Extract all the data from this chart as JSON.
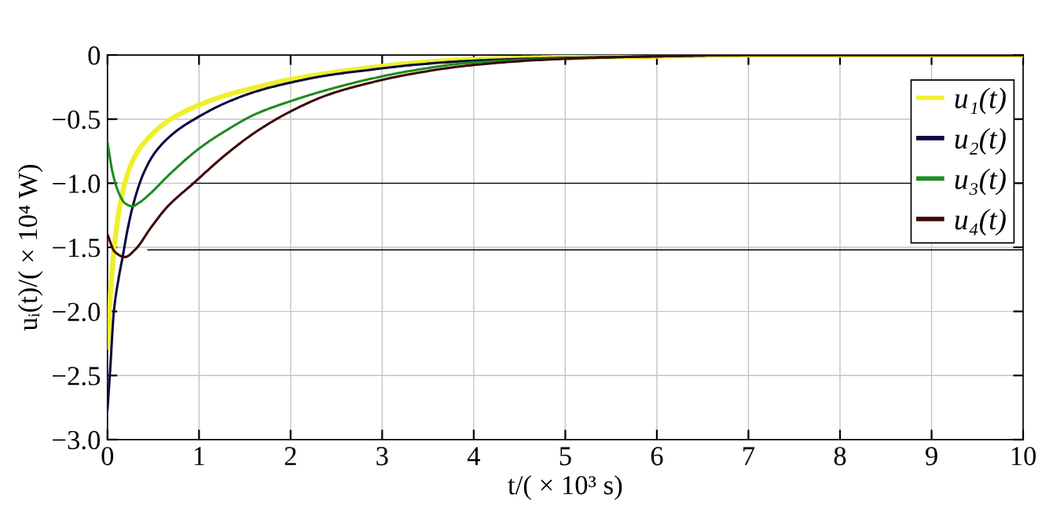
{
  "chart_data": {
    "type": "line",
    "xlabel": "t/( × 10³ s)",
    "ylabel": "uᵢ(t)/( × 10⁴ W)",
    "xlim": [
      0,
      10
    ],
    "ylim": [
      -3.0,
      0
    ],
    "xticks": [
      0,
      1,
      2,
      3,
      4,
      5,
      6,
      7,
      8,
      9,
      10
    ],
    "yticks": [
      {
        "value": -3.0,
        "label": "−3.0"
      },
      {
        "value": -2.5,
        "label": "−2.5"
      },
      {
        "value": -2.0,
        "label": "−2.0"
      },
      {
        "value": -1.5,
        "label": "−1.5"
      },
      {
        "value": -1.0,
        "label": "−1.0"
      },
      {
        "value": -0.5,
        "label": "−0.5"
      },
      0
    ],
    "grid": true,
    "legend": "top right",
    "series": [
      {
        "name": "u₁(t)",
        "color": "#eef02a",
        "x": [
          0,
          0.035,
          0.08,
          0.145,
          0.21,
          0.3,
          0.43,
          0.65,
          1.0,
          1.27,
          1.62,
          2.0,
          2.41,
          2.85,
          3.3,
          3.97,
          4.83,
          6,
          7,
          8,
          9,
          10
        ],
        "values": [
          -2.28,
          -1.84,
          -1.46,
          -1.14,
          -0.95,
          -0.79,
          -0.66,
          -0.52,
          -0.39,
          -0.32,
          -0.253,
          -0.19,
          -0.142,
          -0.1,
          -0.065,
          -0.035,
          -0.02,
          -0.01,
          0,
          0,
          0,
          0
        ]
      },
      {
        "name": "u₂(t)",
        "color": "#0a0a40",
        "x": [
          0,
          0.03,
          0.07,
          0.12,
          0.167,
          0.22,
          0.28,
          0.39,
          0.52,
          0.74,
          1.0,
          1.27,
          1.62,
          2.0,
          2.41,
          2.85,
          3.3,
          3.97,
          4.83,
          6,
          7,
          8,
          9,
          10
        ],
        "values": [
          -2.77,
          -2.45,
          -2.0,
          -1.75,
          -1.57,
          -1.36,
          -1.17,
          -0.93,
          -0.76,
          -0.6,
          -0.48,
          -0.38,
          -0.285,
          -0.215,
          -0.158,
          -0.117,
          -0.08,
          -0.045,
          -0.025,
          -0.01,
          0,
          0,
          0,
          0
        ]
      },
      {
        "name": "u₃(t)",
        "color": "#1e8c1e",
        "x": [
          0,
          0.057,
          0.123,
          0.19,
          0.27,
          0.34,
          0.476,
          0.65,
          1.0,
          1.27,
          1.62,
          2.0,
          2.41,
          2.85,
          3.3,
          3.97,
          4.83,
          6
        ],
        "values": [
          -0.68,
          -0.92,
          -1.075,
          -1.155,
          -1.18,
          -1.155,
          -1.075,
          -0.95,
          -0.73,
          -0.6,
          -0.46,
          -0.36,
          -0.27,
          -0.19,
          -0.125,
          -0.06,
          -0.03,
          -0.01
        ]
      },
      {
        "name": "u₄(t)",
        "color": "#3c0808",
        "x": [
          0,
          0.08,
          0.19,
          0.3,
          0.476,
          0.65,
          0.94,
          1.27,
          1.62,
          2.0,
          2.41,
          2.85,
          3.3,
          3.97,
          4.83,
          6,
          7,
          8,
          9,
          10
        ],
        "values": [
          -1.4,
          -1.535,
          -1.576,
          -1.52,
          -1.345,
          -1.187,
          -1.0,
          -0.79,
          -0.6,
          -0.44,
          -0.31,
          -0.22,
          -0.15,
          -0.08,
          -0.035,
          -0.01,
          0,
          0,
          0,
          0
        ]
      },
      {
        "color": "#000000",
        "x": [
          0.92,
          10
        ],
        "values": [
          -1.0,
          -1.0
        ]
      },
      {
        "color": "#000000",
        "x": [
          0.44,
          10
        ],
        "values": [
          -1.52,
          -1.52
        ]
      }
    ]
  }
}
